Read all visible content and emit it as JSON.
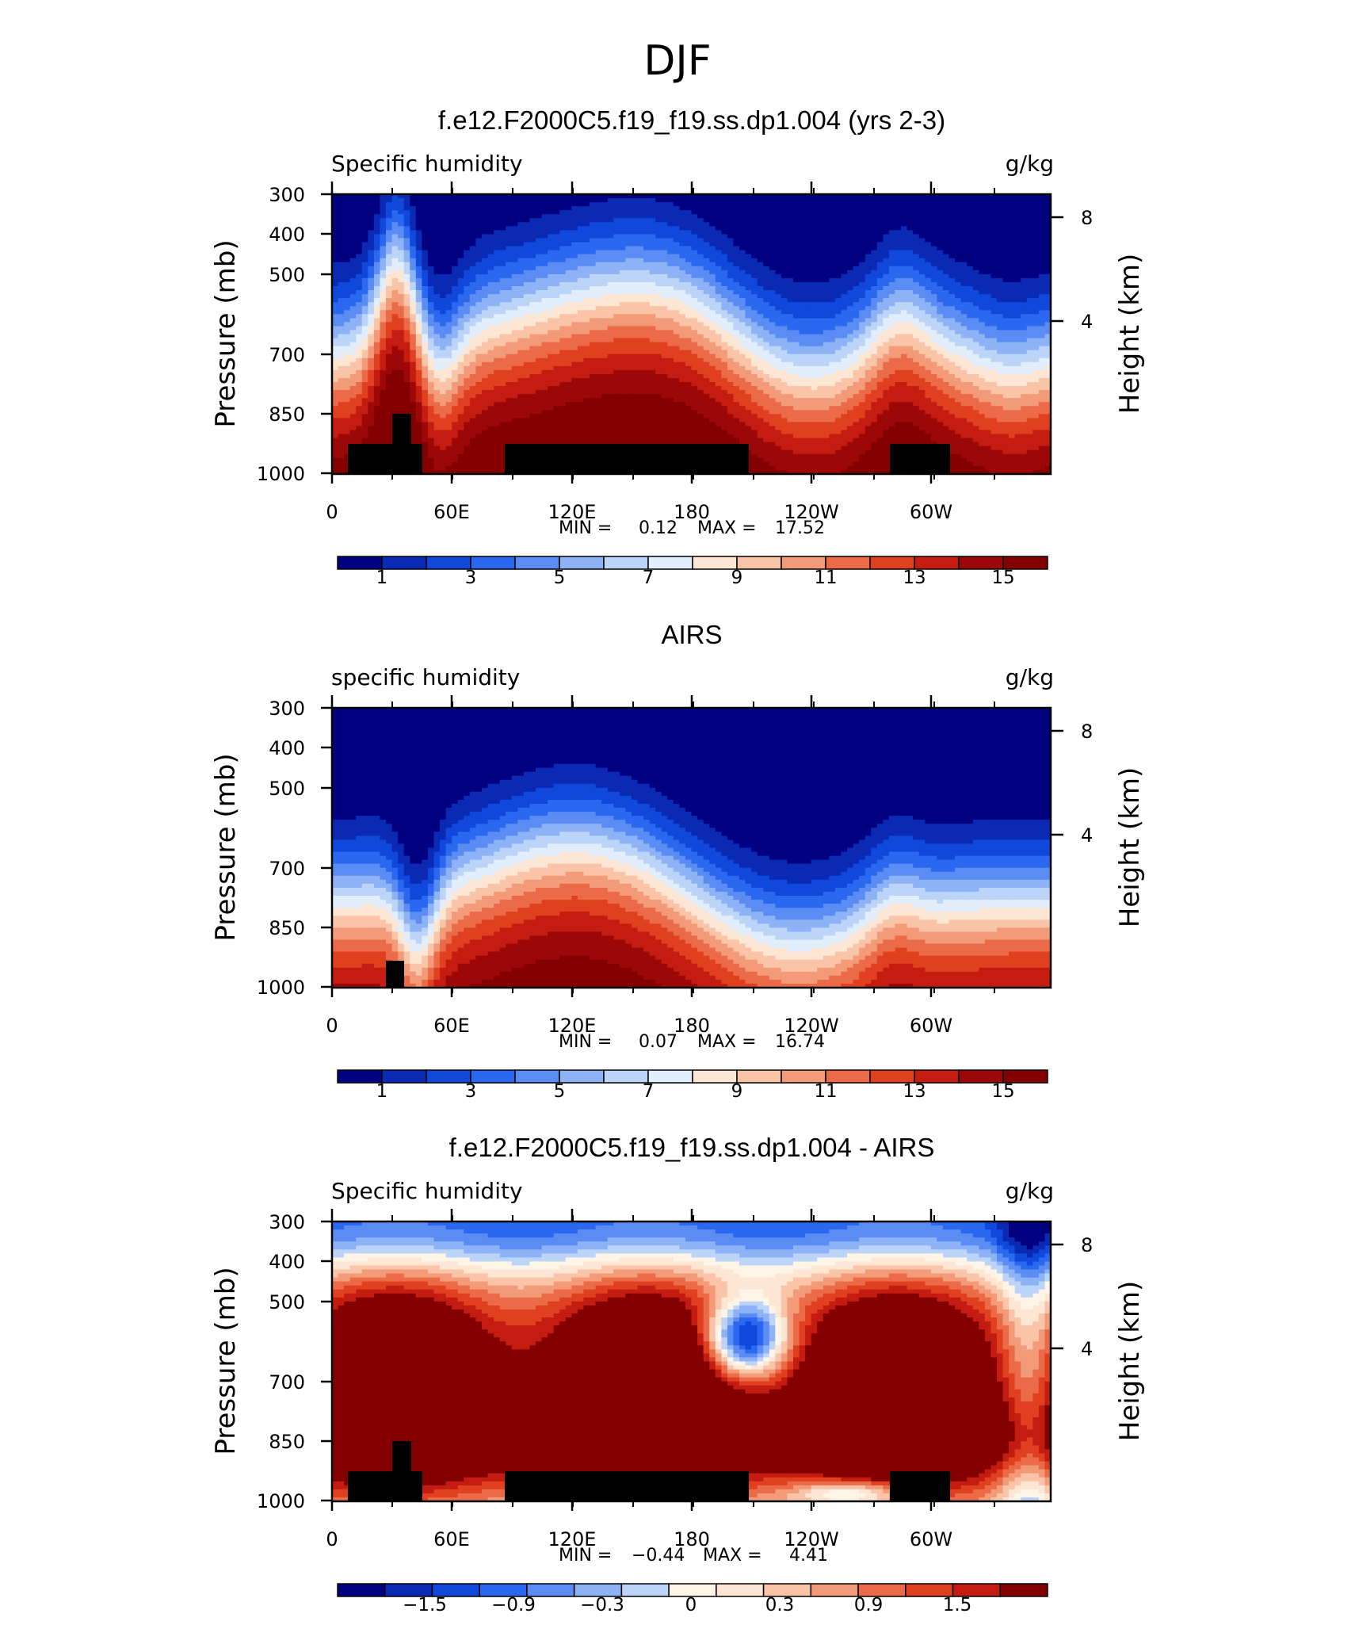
{
  "figure_title": "DJF",
  "chart_data": [
    {
      "type": "heatmap",
      "title": "f.e12.F2000C5.f19_f19.ss.dp1.004 (yrs 2-3)",
      "left_label": "Specific humidity",
      "right_label": "g/kg",
      "ylabel": "Pressure (mb)",
      "y2label": "Height (km)",
      "y_ticks": [
        "300",
        "400",
        "500",
        "700",
        "850",
        "1000"
      ],
      "y2_ticks": [
        "8",
        "4"
      ],
      "x_ticks": [
        "0",
        "60E",
        "120E",
        "180",
        "120W",
        "60W"
      ],
      "min_label": "MIN =",
      "min_value": "0.12",
      "max_label": "MAX =",
      "max_value": "17.52",
      "colorbar_labels": [
        "1",
        "3",
        "5",
        "7",
        "9",
        "11",
        "13",
        "15"
      ],
      "colorbar_colors": [
        "#000080",
        "#0a2ab4",
        "#1048dc",
        "#2a68f0",
        "#5a8cf4",
        "#8eb2f6",
        "#bcd4f8",
        "#e2eefc",
        "#fde6d4",
        "#f9c4a8",
        "#f39a78",
        "#eb6a48",
        "#e04020",
        "#c41c10",
        "#9c0808",
        "#840000"
      ],
      "field": "model",
      "min": 0.12,
      "max": 17.52
    },
    {
      "type": "heatmap",
      "title": "AIRS",
      "left_label": "specific humidity",
      "right_label": "g/kg",
      "ylabel": "Pressure (mb)",
      "y2label": "Height (km)",
      "y_ticks": [
        "300",
        "400",
        "500",
        "700",
        "850",
        "1000"
      ],
      "y2_ticks": [
        "8",
        "4"
      ],
      "x_ticks": [
        "0",
        "60E",
        "120E",
        "180",
        "120W",
        "60W"
      ],
      "min_label": "MIN =",
      "min_value": "0.07",
      "max_label": "MAX =",
      "max_value": "16.74",
      "colorbar_labels": [
        "1",
        "3",
        "5",
        "7",
        "9",
        "11",
        "13",
        "15"
      ],
      "colorbar_colors": [
        "#000080",
        "#0a2ab4",
        "#1048dc",
        "#2a68f0",
        "#5a8cf4",
        "#8eb2f6",
        "#bcd4f8",
        "#e2eefc",
        "#fde6d4",
        "#f9c4a8",
        "#f39a78",
        "#eb6a48",
        "#e04020",
        "#c41c10",
        "#9c0808",
        "#840000"
      ],
      "field": "obs",
      "min": 0.07,
      "max": 16.74
    },
    {
      "type": "heatmap",
      "title": "f.e12.F2000C5.f19_f19.ss.dp1.004 - AIRS",
      "left_label": "Specific humidity",
      "right_label": "g/kg",
      "ylabel": "Pressure (mb)",
      "y2label": "Height (km)",
      "y_ticks": [
        "300",
        "400",
        "500",
        "700",
        "850",
        "1000"
      ],
      "y2_ticks": [
        "8",
        "4"
      ],
      "x_ticks": [
        "0",
        "60E",
        "120E",
        "180",
        "120W",
        "60W"
      ],
      "min_label": "MIN =",
      "min_value": "−0.44",
      "max_label": "MAX =",
      "max_value": "4.41",
      "colorbar_labels": [
        "−1.5",
        "−0.9",
        "−0.3",
        "0",
        "0.3",
        "0.9",
        "1.5"
      ],
      "colorbar_colors": [
        "#000080",
        "#0a2ab4",
        "#1048dc",
        "#2a68f0",
        "#5a8cf4",
        "#8eb2f6",
        "#bcd4f8",
        "#fff4e8",
        "#fde6d4",
        "#f9c4a8",
        "#f39a78",
        "#eb6a48",
        "#e04020",
        "#c41c10",
        "#840000"
      ],
      "field": "diff",
      "min": -0.44,
      "max": 4.41
    }
  ]
}
